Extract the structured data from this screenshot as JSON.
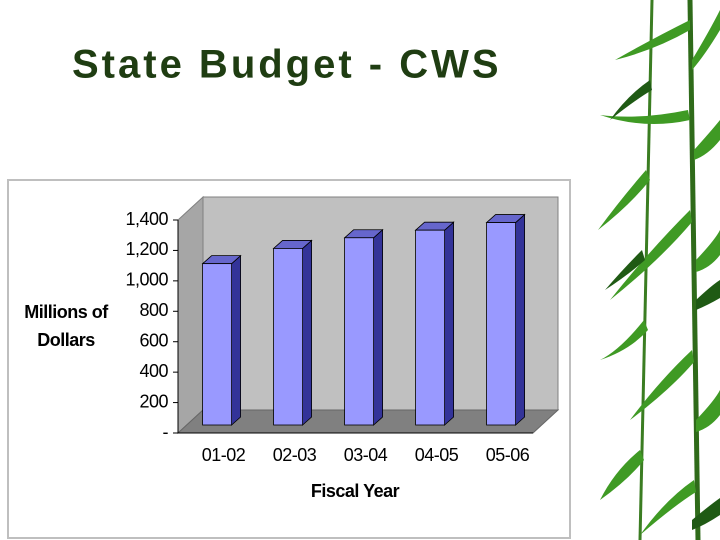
{
  "chart_data": {
    "type": "bar",
    "title": "State Budget - CWS",
    "y_label": [
      "Millions of",
      "Dollars"
    ],
    "x_label": "Fiscal Year",
    "categories": [
      "01-02",
      "02-03",
      "03-04",
      "04-05",
      "05-06"
    ],
    "values": [
      1100,
      1200,
      1270,
      1320,
      1370
    ],
    "color": "#9999ff",
    "ylim": [
      0,
      1400
    ],
    "yticks": [
      {
        "value": 0,
        "label": "-"
      },
      200,
      400,
      600,
      800,
      {
        "value": 1000,
        "label": "1,000"
      },
      {
        "value": 1200,
        "label": "1,200"
      },
      {
        "value": 1400,
        "label": "1,400"
      }
    ],
    "grid": false
  }
}
